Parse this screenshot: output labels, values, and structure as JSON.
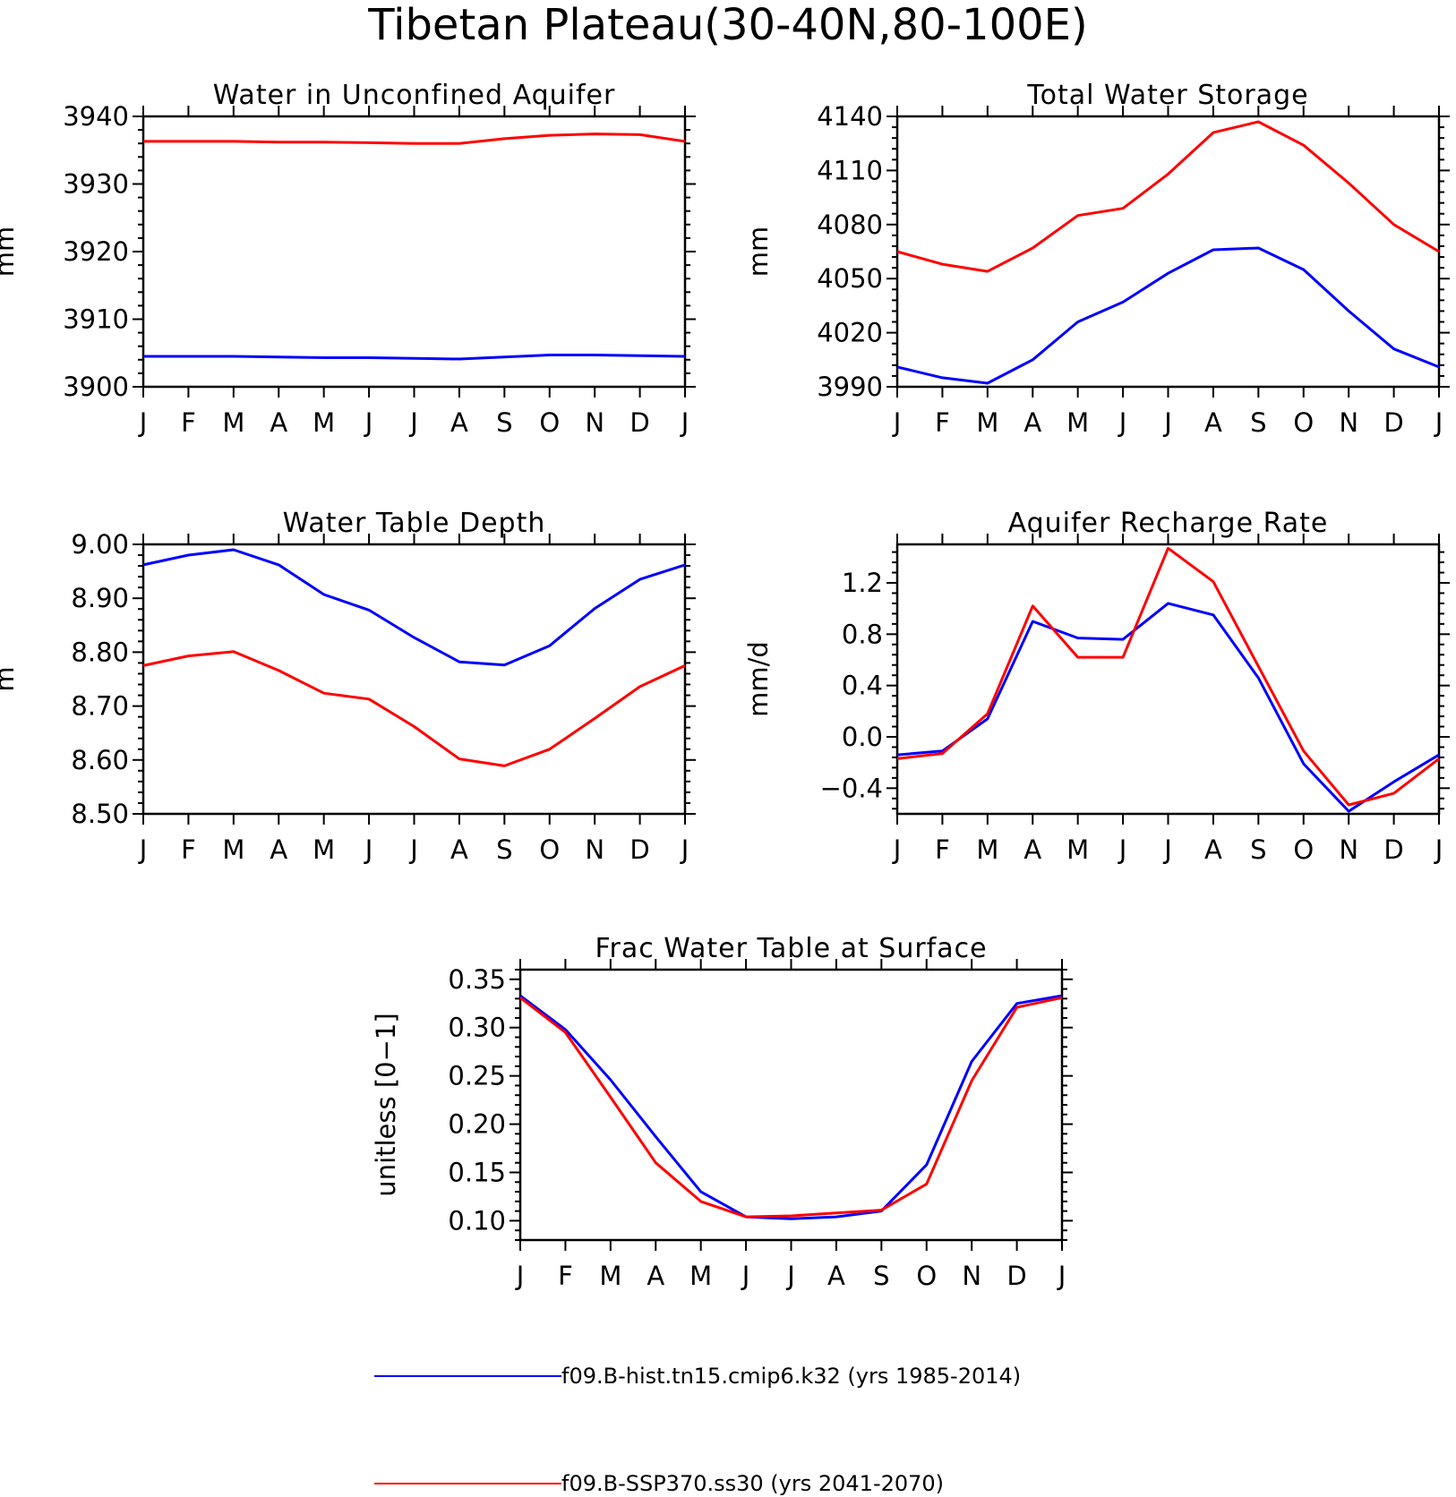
{
  "title": "Tibetan Plateau(30-40N,80-100E)",
  "colors": {
    "hist": "#0000ff",
    "future": "#ff0000",
    "axis": "#000000"
  },
  "legend": [
    {
      "label": "f09.B-hist.tn15.cmip6.k32 (yrs 1985-2014)",
      "color": "#0000ff"
    },
    {
      "label": "f09.B-SSP370.ss30 (yrs 2041-2070)",
      "color": "#ff0000"
    }
  ],
  "chart_data": [
    {
      "type": "line",
      "title": "Water in Unconfined Aquifer",
      "ylabel": "mm",
      "xlabel": "",
      "categories": [
        "J",
        "F",
        "M",
        "A",
        "M",
        "J",
        "J",
        "A",
        "S",
        "O",
        "N",
        "D",
        "J"
      ],
      "ylim": [
        3900,
        3940
      ],
      "yticks": [
        "3900",
        "3910",
        "3920",
        "3930",
        "3940"
      ],
      "grid": false,
      "series": [
        {
          "color": "#0000ff",
          "values": [
            3904.5,
            3904.5,
            3904.5,
            3904.4,
            3904.3,
            3904.3,
            3904.2,
            3904.1,
            3904.4,
            3904.7,
            3904.7,
            3904.6,
            3904.5
          ]
        },
        {
          "color": "#ff0000",
          "values": [
            3936.3,
            3936.3,
            3936.3,
            3936.2,
            3936.2,
            3936.1,
            3936.0,
            3936.0,
            3936.7,
            3937.2,
            3937.4,
            3937.3,
            3936.3
          ]
        }
      ]
    },
    {
      "type": "line",
      "title": "Total Water Storage",
      "ylabel": "mm",
      "xlabel": "",
      "categories": [
        "J",
        "F",
        "M",
        "A",
        "M",
        "J",
        "J",
        "A",
        "S",
        "O",
        "N",
        "D",
        "J"
      ],
      "ylim": [
        3990,
        4140
      ],
      "yticks": [
        "3990",
        "4020",
        "4050",
        "4080",
        "4110",
        "4140"
      ],
      "grid": false,
      "series": [
        {
          "color": "#0000ff",
          "values": [
            4001,
            3995,
            3992,
            4005,
            4026,
            4037,
            4053,
            4066,
            4067,
            4055,
            4032,
            4011,
            4001
          ]
        },
        {
          "color": "#ff0000",
          "values": [
            4065,
            4058,
            4054,
            4067,
            4085,
            4089,
            4108,
            4131,
            4137,
            4124,
            4103,
            4080,
            4065
          ]
        }
      ]
    },
    {
      "type": "line",
      "title": "Water Table Depth",
      "ylabel": "m",
      "xlabel": "",
      "categories": [
        "J",
        "F",
        "M",
        "A",
        "M",
        "J",
        "J",
        "A",
        "S",
        "O",
        "N",
        "D",
        "J"
      ],
      "ylim": [
        8.5,
        9.0
      ],
      "yticks": [
        "8.50",
        "8.60",
        "8.70",
        "8.80",
        "8.90",
        "9.00"
      ],
      "grid": false,
      "series": [
        {
          "color": "#0000ff",
          "values": [
            8.962,
            8.98,
            8.99,
            8.962,
            8.907,
            8.878,
            8.827,
            8.782,
            8.776,
            8.812,
            8.881,
            8.935,
            8.962
          ]
        },
        {
          "color": "#ff0000",
          "values": [
            8.775,
            8.793,
            8.801,
            8.766,
            8.724,
            8.713,
            8.662,
            8.602,
            8.589,
            8.62,
            8.677,
            8.736,
            8.775
          ]
        }
      ]
    },
    {
      "type": "line",
      "title": "Aquifer Recharge Rate",
      "ylabel": "mm/d",
      "xlabel": "",
      "categories": [
        "J",
        "F",
        "M",
        "A",
        "M",
        "J",
        "J",
        "A",
        "S",
        "O",
        "N",
        "D",
        "J"
      ],
      "ylim": [
        -0.6,
        1.5
      ],
      "yticks": [
        "−0.4",
        "0.0",
        "0.4",
        "0.8",
        "1.2"
      ],
      "grid": false,
      "series": [
        {
          "color": "#0000ff",
          "values": [
            -0.14,
            -0.11,
            0.14,
            0.9,
            0.77,
            0.76,
            1.04,
            0.95,
            0.46,
            -0.21,
            -0.58,
            -0.35,
            -0.14
          ]
        },
        {
          "color": "#ff0000",
          "values": [
            -0.17,
            -0.13,
            0.18,
            1.02,
            0.62,
            0.62,
            1.47,
            1.21,
            0.55,
            -0.11,
            -0.53,
            -0.44,
            -0.17
          ]
        }
      ]
    },
    {
      "type": "line",
      "title": "Frac Water Table at Surface",
      "ylabel": "unitless [0−1]",
      "xlabel": "",
      "categories": [
        "J",
        "F",
        "M",
        "A",
        "M",
        "J",
        "J",
        "A",
        "S",
        "O",
        "N",
        "D",
        "J"
      ],
      "ylim": [
        0.08,
        0.36
      ],
      "yticks": [
        "0.10",
        "0.15",
        "0.20",
        "0.25",
        "0.30",
        "0.35"
      ],
      "grid": false,
      "series": [
        {
          "color": "#0000ff",
          "values": [
            0.333,
            0.298,
            0.246,
            0.187,
            0.13,
            0.104,
            0.102,
            0.104,
            0.11,
            0.158,
            0.265,
            0.325,
            0.333
          ]
        },
        {
          "color": "#ff0000",
          "values": [
            0.331,
            0.295,
            0.228,
            0.16,
            0.12,
            0.104,
            0.105,
            0.108,
            0.111,
            0.138,
            0.245,
            0.321,
            0.331
          ]
        }
      ]
    }
  ]
}
